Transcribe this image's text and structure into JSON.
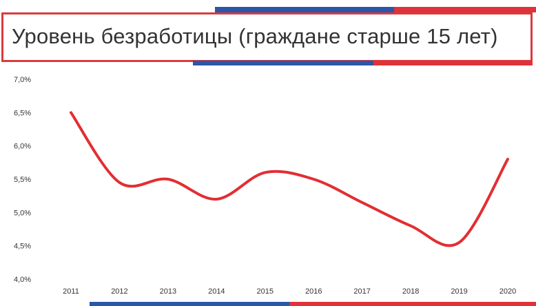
{
  "title": "Уровень безработицы (граждане старше 15 лет)",
  "colors": {
    "line": "#e22e33",
    "red": "#e0323a",
    "blue": "#2c56a7",
    "text": "#333333"
  },
  "chart_data": {
    "type": "line",
    "title": "Уровень безработицы (граждане старше 15 лет)",
    "x": [
      "2011",
      "2012",
      "2013",
      "2014",
      "2015",
      "2016",
      "2017",
      "2018",
      "2019",
      "2020"
    ],
    "values": [
      6.5,
      5.45,
      5.5,
      5.2,
      5.6,
      5.5,
      5.15,
      4.8,
      4.55,
      5.8
    ],
    "yticks": [
      "7,0%",
      "6,5%",
      "6,0%",
      "5,5%",
      "5,0%",
      "4,5%",
      "4,0%"
    ],
    "ylim": [
      4.0,
      7.0
    ],
    "smooth": true,
    "grid": false,
    "legend": "none"
  }
}
